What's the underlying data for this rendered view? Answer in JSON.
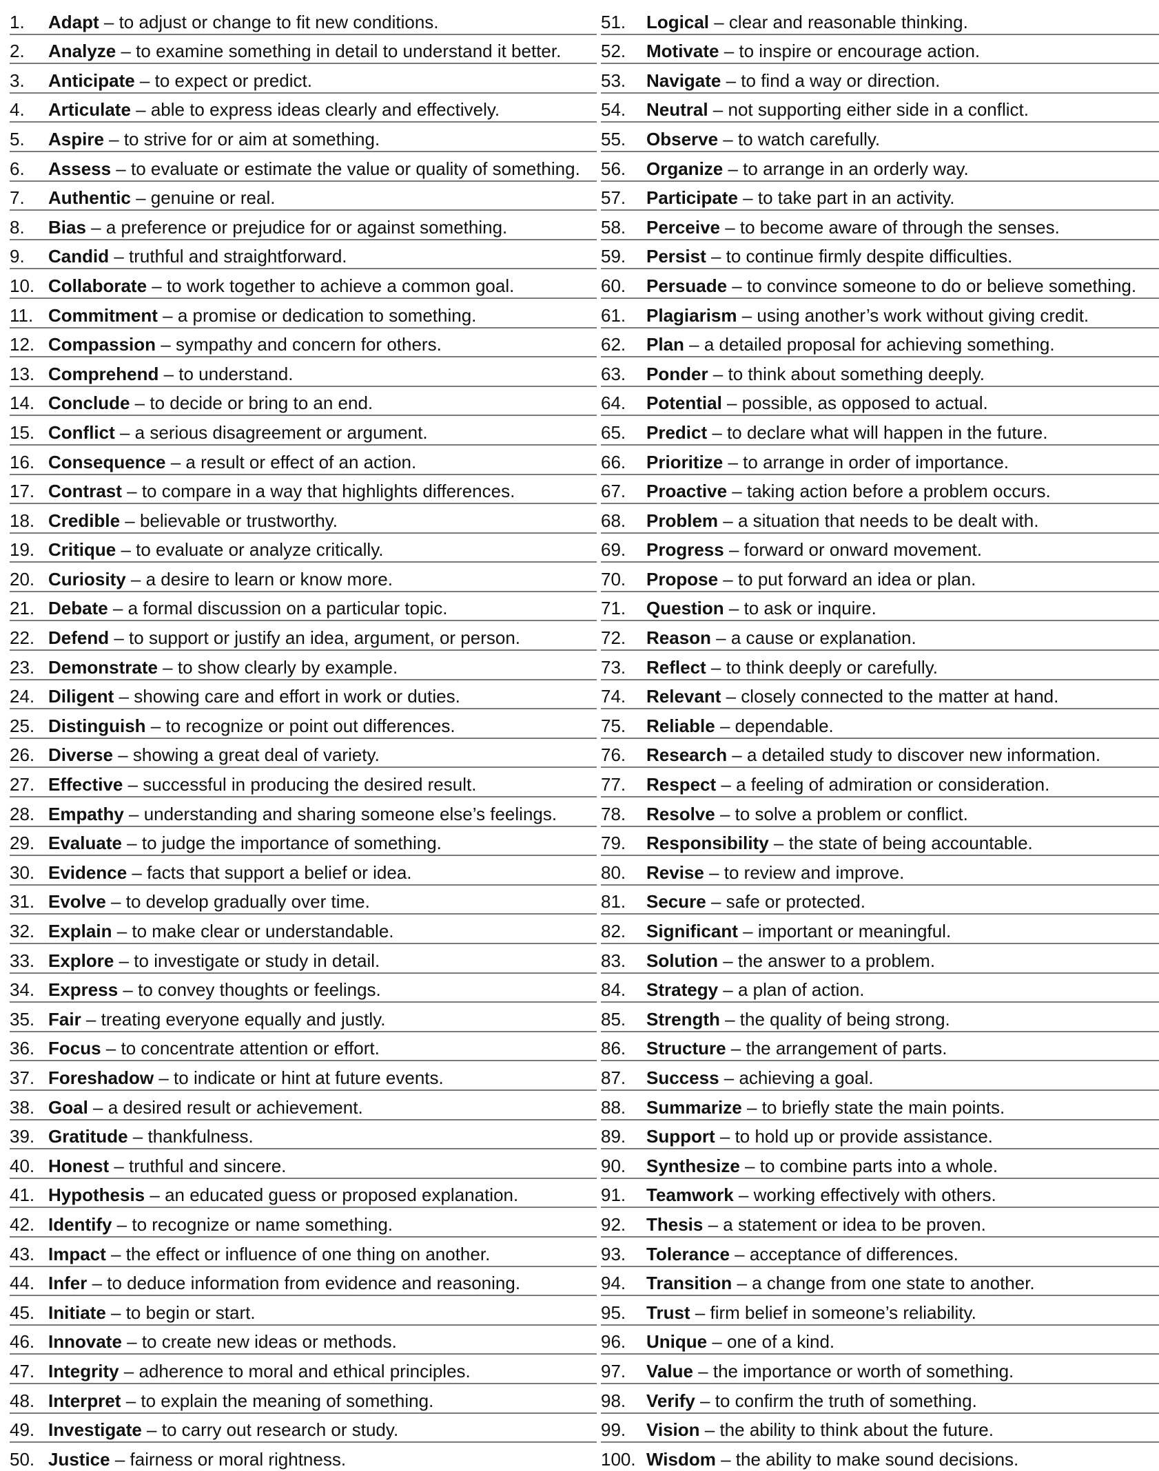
{
  "columns": [
    [
      {
        "n": "1.",
        "term": "Adapt",
        "def": " – to adjust or change to fit new conditions."
      },
      {
        "n": "2.",
        "term": "Analyze",
        "def": " – to examine something in detail to understand it better."
      },
      {
        "n": "3.",
        "term": "Anticipate",
        "def": " – to expect or predict."
      },
      {
        "n": "4.",
        "term": "Articulate",
        "def": " – able to express ideas clearly and effectively."
      },
      {
        "n": "5.",
        "term": "Aspire",
        "def": " – to strive for or aim at something."
      },
      {
        "n": "6.",
        "term": "Assess",
        "def": " – to evaluate or estimate the value or quality of something."
      },
      {
        "n": "7.",
        "term": "Authentic",
        "def": " – genuine or real."
      },
      {
        "n": "8.",
        "term": "Bias",
        "def": " – a preference or prejudice for or against something."
      },
      {
        "n": "9.",
        "term": "Candid",
        "def": " – truthful and straightforward."
      },
      {
        "n": "10.",
        "term": "Collaborate",
        "def": " – to work together to achieve a common goal."
      },
      {
        "n": "11.",
        "term": "Commitment",
        "def": " – a promise or dedication to something."
      },
      {
        "n": "12.",
        "term": "Compassion",
        "def": " – sympathy and concern for others."
      },
      {
        "n": "13.",
        "term": "Comprehend",
        "def": " – to understand."
      },
      {
        "n": "14.",
        "term": "Conclude",
        "def": " – to decide or bring to an end."
      },
      {
        "n": "15.",
        "term": "Conflict",
        "def": " – a serious disagreement or argument."
      },
      {
        "n": "16.",
        "term": "Consequence",
        "def": " – a result or effect of an action."
      },
      {
        "n": "17.",
        "term": "Contrast",
        "def": " – to compare in a way that highlights differences."
      },
      {
        "n": "18.",
        "term": "Credible",
        "def": " – believable or trustworthy."
      },
      {
        "n": "19.",
        "term": "Critique",
        "def": " – to evaluate or analyze critically."
      },
      {
        "n": "20.",
        "term": "Curiosity",
        "def": " – a desire to learn or know more."
      },
      {
        "n": "21.",
        "term": "Debate",
        "def": " – a formal discussion on a particular topic."
      },
      {
        "n": "22.",
        "term": "Defend",
        "def": " – to support or justify an idea, argument, or person."
      },
      {
        "n": "23.",
        "term": "Demonstrate",
        "def": " – to show clearly by example."
      },
      {
        "n": "24.",
        "term": "Diligent",
        "def": " – showing care and effort in work or duties."
      },
      {
        "n": "25.",
        "term": "Distinguish",
        "def": " – to recognize or point out differences."
      },
      {
        "n": "26.",
        "term": "Diverse",
        "def": " – showing a great deal of variety."
      },
      {
        "n": "27.",
        "term": "Effective",
        "def": " – successful in producing the desired result."
      },
      {
        "n": "28.",
        "term": "Empathy",
        "def": " – understanding and sharing someone else’s feelings."
      },
      {
        "n": "29.",
        "term": "Evaluate",
        "def": " – to judge the importance of something."
      },
      {
        "n": "30.",
        "term": "Evidence",
        "def": " – facts that support a belief or idea."
      },
      {
        "n": "31.",
        "term": "Evolve",
        "def": " – to develop gradually over time."
      },
      {
        "n": "32.",
        "term": "Explain",
        "def": " – to make clear or understandable."
      },
      {
        "n": "33.",
        "term": "Explore",
        "def": " – to investigate or study in detail."
      },
      {
        "n": "34.",
        "term": "Express",
        "def": " – to convey thoughts or feelings."
      },
      {
        "n": "35.",
        "term": "Fair",
        "def": " – treating everyone equally and justly."
      },
      {
        "n": "36.",
        "term": "Focus",
        "def": " – to concentrate attention or effort."
      },
      {
        "n": "37.",
        "term": "Foreshadow",
        "def": " – to indicate or hint at future events."
      },
      {
        "n": "38.",
        "term": "Goal",
        "def": " – a desired result or achievement."
      },
      {
        "n": "39.",
        "term": "Gratitude",
        "def": " – thankfulness."
      },
      {
        "n": "40.",
        "term": "Honest",
        "def": " – truthful and sincere."
      },
      {
        "n": "41.",
        "term": "Hypothesis",
        "def": " – an educated guess or proposed explanation."
      },
      {
        "n": "42.",
        "term": "Identify",
        "def": " – to recognize or name something."
      },
      {
        "n": "43.",
        "term": "Impact",
        "def": " – the effect or influence of one thing on another."
      },
      {
        "n": "44.",
        "term": "Infer",
        "def": " – to deduce information from evidence and reasoning."
      },
      {
        "n": "45.",
        "term": "Initiate",
        "def": " – to begin or start."
      },
      {
        "n": "46.",
        "term": "Innovate",
        "def": " – to create new ideas or methods."
      },
      {
        "n": "47.",
        "term": "Integrity",
        "def": " – adherence to moral and ethical principles."
      },
      {
        "n": "48.",
        "term": "Interpret",
        "def": " – to explain the meaning of something."
      },
      {
        "n": "49.",
        "term": "Investigate",
        "def": " – to carry out research or study."
      },
      {
        "n": "50.",
        "term": "Justice",
        "def": " – fairness or moral rightness."
      }
    ],
    [
      {
        "n": "51.",
        "term": "Logical",
        "def": " – clear and reasonable thinking."
      },
      {
        "n": "52.",
        "term": "Motivate",
        "def": " – to inspire or encourage action."
      },
      {
        "n": "53.",
        "term": "Navigate",
        "def": " – to find a way or direction."
      },
      {
        "n": "54.",
        "term": "Neutral",
        "def": " – not supporting either side in a conflict."
      },
      {
        "n": "55.",
        "term": "Observe",
        "def": " – to watch carefully."
      },
      {
        "n": "56.",
        "term": "Organize",
        "def": " – to arrange in an orderly way."
      },
      {
        "n": "57.",
        "term": "Participate",
        "def": " – to take part in an activity."
      },
      {
        "n": "58.",
        "term": "Perceive",
        "def": " – to become aware of through the senses."
      },
      {
        "n": "59.",
        "term": "Persist",
        "def": " – to continue firmly despite difficulties."
      },
      {
        "n": "60.",
        "term": "Persuade",
        "def": " – to convince someone to do or believe something."
      },
      {
        "n": "61.",
        "term": "Plagiarism",
        "def": " – using another’s work without giving credit."
      },
      {
        "n": "62.",
        "term": "Plan",
        "def": " – a detailed proposal for achieving something."
      },
      {
        "n": "63.",
        "term": "Ponder",
        "def": " – to think about something deeply."
      },
      {
        "n": "64.",
        "term": "Potential",
        "def": " – possible, as opposed to actual."
      },
      {
        "n": "65.",
        "term": "Predict",
        "def": " – to declare what will happen in the future."
      },
      {
        "n": "66.",
        "term": "Prioritize",
        "def": " – to arrange in order of importance."
      },
      {
        "n": "67.",
        "term": "Proactive",
        "def": " – taking action before a problem occurs."
      },
      {
        "n": "68.",
        "term": "Problem",
        "def": " – a situation that needs to be dealt with."
      },
      {
        "n": "69.",
        "term": "Progress",
        "def": " – forward or onward movement."
      },
      {
        "n": "70.",
        "term": "Propose",
        "def": " – to put forward an idea or plan."
      },
      {
        "n": "71.",
        "term": "Question",
        "def": " – to ask or inquire."
      },
      {
        "n": "72.",
        "term": "Reason",
        "def": " – a cause or explanation."
      },
      {
        "n": "73.",
        "term": "Reflect",
        "def": " – to think deeply or carefully."
      },
      {
        "n": "74.",
        "term": "Relevant",
        "def": " – closely connected to the matter at hand."
      },
      {
        "n": "75.",
        "term": "Reliable",
        "def": " – dependable."
      },
      {
        "n": "76.",
        "term": "Research",
        "def": " – a detailed study to discover new information."
      },
      {
        "n": "77.",
        "term": "Respect",
        "def": " – a feeling of admiration or consideration."
      },
      {
        "n": "78.",
        "term": "Resolve",
        "def": " – to solve a problem or conflict."
      },
      {
        "n": "79.",
        "term": "Responsibility",
        "def": " – the state of being accountable."
      },
      {
        "n": "80.",
        "term": "Revise",
        "def": " – to review and improve."
      },
      {
        "n": "81.",
        "term": "Secure",
        "def": " – safe or protected."
      },
      {
        "n": "82.",
        "term": "Significant",
        "def": " – important or meaningful."
      },
      {
        "n": "83.",
        "term": "Solution",
        "def": " – the answer to a problem."
      },
      {
        "n": "84.",
        "term": "Strategy",
        "def": " – a plan of action."
      },
      {
        "n": "85.",
        "term": "Strength",
        "def": " – the quality of being strong."
      },
      {
        "n": "86.",
        "term": "Structure",
        "def": " – the arrangement of parts."
      },
      {
        "n": "87.",
        "term": "Success",
        "def": " – achieving a goal."
      },
      {
        "n": "88.",
        "term": "Summarize",
        "def": " – to briefly state the main points."
      },
      {
        "n": "89.",
        "term": "Support",
        "def": " – to hold up or provide assistance."
      },
      {
        "n": "90.",
        "term": "Synthesize",
        "def": " – to combine parts into a whole."
      },
      {
        "n": "91.",
        "term": "Teamwork",
        "def": " – working effectively with others."
      },
      {
        "n": "92.",
        "term": "Thesis",
        "def": " – a statement or idea to be proven."
      },
      {
        "n": "93.",
        "term": "Tolerance",
        "def": " – acceptance of differences."
      },
      {
        "n": "94.",
        "term": "Transition",
        "def": " – a change from one state to another."
      },
      {
        "n": "95.",
        "term": "Trust",
        "def": " – firm belief in someone’s reliability."
      },
      {
        "n": "96.",
        "term": "Unique",
        "def": " – one of a kind."
      },
      {
        "n": "97.",
        "term": "Value",
        "def": " – the importance or worth of something."
      },
      {
        "n": "98.",
        "term": "Verify",
        "def": " – to confirm the truth of something."
      },
      {
        "n": "99.",
        "term": "Vision",
        "def": " – the ability to think about the future."
      },
      {
        "n": "100.",
        "term": "Wisdom",
        "def": " – the ability to make sound decisions."
      }
    ]
  ]
}
